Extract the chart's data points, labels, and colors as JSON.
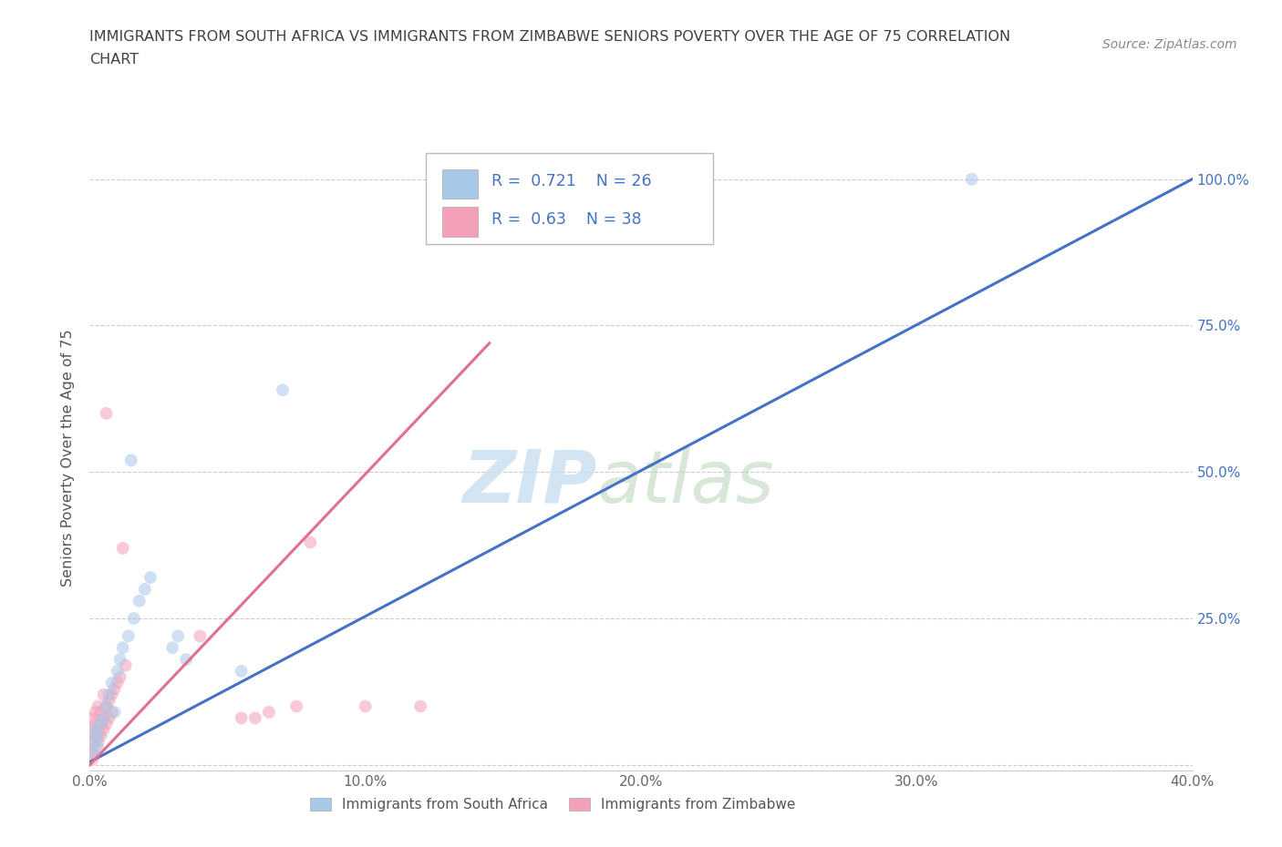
{
  "title_line1": "IMMIGRANTS FROM SOUTH AFRICA VS IMMIGRANTS FROM ZIMBABWE SENIORS POVERTY OVER THE AGE OF 75 CORRELATION",
  "title_line2": "CHART",
  "source": "Source: ZipAtlas.com",
  "ylabel": "Seniors Poverty Over the Age of 75",
  "background_color": "#ffffff",
  "watermark_zip": "ZIP",
  "watermark_atlas": "atlas",
  "south_africa": {
    "label": "Immigrants from South Africa",
    "color": "#a8c8e8",
    "R": 0.721,
    "N": 26,
    "scatter_x": [
      0.001,
      0.002,
      0.002,
      0.003,
      0.003,
      0.004,
      0.005,
      0.006,
      0.007,
      0.008,
      0.009,
      0.01,
      0.011,
      0.012,
      0.014,
      0.015,
      0.016,
      0.018,
      0.02,
      0.022,
      0.03,
      0.032,
      0.035,
      0.055,
      0.07,
      0.32
    ],
    "scatter_y": [
      0.02,
      0.04,
      0.06,
      0.05,
      0.03,
      0.07,
      0.08,
      0.1,
      0.12,
      0.14,
      0.09,
      0.16,
      0.18,
      0.2,
      0.22,
      0.52,
      0.25,
      0.28,
      0.3,
      0.32,
      0.2,
      0.22,
      0.18,
      0.16,
      0.64,
      1.0
    ]
  },
  "zimbabwe": {
    "label": "Immigrants from Zimbabwe",
    "color": "#f4a0b8",
    "R": 0.63,
    "N": 38,
    "scatter_x": [
      0.001,
      0.001,
      0.001,
      0.001,
      0.001,
      0.002,
      0.002,
      0.002,
      0.002,
      0.003,
      0.003,
      0.003,
      0.004,
      0.004,
      0.004,
      0.005,
      0.005,
      0.005,
      0.006,
      0.006,
      0.006,
      0.007,
      0.007,
      0.008,
      0.008,
      0.009,
      0.01,
      0.011,
      0.012,
      0.013,
      0.04,
      0.055,
      0.06,
      0.065,
      0.075,
      0.08,
      0.1,
      0.12
    ],
    "scatter_y": [
      0.01,
      0.02,
      0.04,
      0.06,
      0.08,
      0.03,
      0.05,
      0.07,
      0.09,
      0.04,
      0.06,
      0.1,
      0.05,
      0.07,
      0.09,
      0.06,
      0.08,
      0.12,
      0.07,
      0.1,
      0.6,
      0.08,
      0.11,
      0.09,
      0.12,
      0.13,
      0.14,
      0.15,
      0.37,
      0.17,
      0.22,
      0.08,
      0.08,
      0.09,
      0.1,
      0.38,
      0.1,
      0.1
    ]
  },
  "sa_line": {
    "x0": 0.0,
    "y0": 0.005,
    "x1": 0.4,
    "y1": 1.0
  },
  "zim_line": {
    "x0": 0.0,
    "y0": 0.0,
    "x1": 0.145,
    "y1": 0.72
  },
  "xlim": [
    0,
    0.4
  ],
  "ylim": [
    -0.01,
    1.06
  ],
  "xticks": [
    0.0,
    0.1,
    0.2,
    0.3,
    0.4
  ],
  "xticklabels": [
    "0.0%",
    "10.0%",
    "20.0%",
    "30.0%",
    "40.0%"
  ],
  "yticks": [
    0.0,
    0.25,
    0.5,
    0.75,
    1.0
  ],
  "ytick_labels_right": [
    "",
    "25.0%",
    "50.0%",
    "75.0%",
    "100.0%"
  ],
  "sa_line_color": "#4472c4",
  "zim_line_color": "#e07090",
  "legend_color": "#4472c4",
  "title_color": "#404040",
  "source_color": "#888888",
  "grid_color": "#cccccc",
  "marker_size": 100,
  "marker_alpha": 0.55,
  "line_width": 2.2
}
